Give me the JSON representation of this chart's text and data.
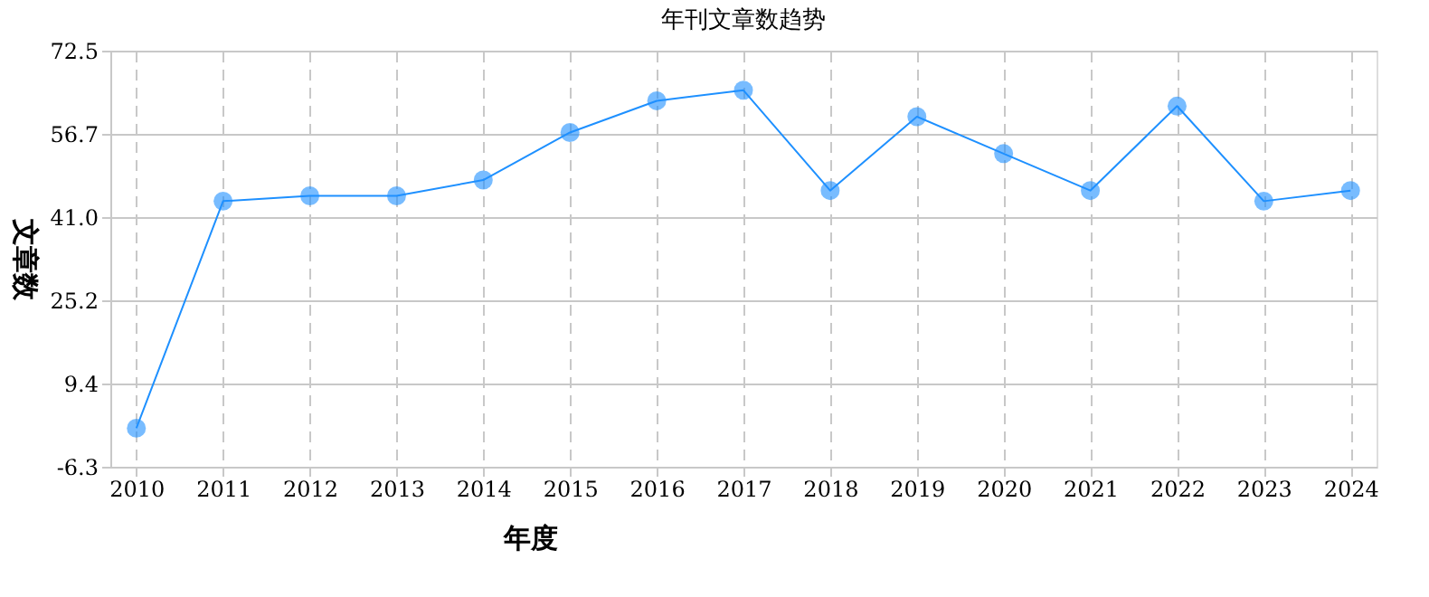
{
  "chart_data": {
    "type": "line",
    "title": "年刊文章数趋势",
    "xlabel": "年度",
    "ylabel": "文章数",
    "categories": [
      "2010",
      "2011",
      "2012",
      "2013",
      "2014",
      "2015",
      "2016",
      "2017",
      "2018",
      "2019",
      "2020",
      "2021",
      "2022",
      "2023",
      "2024"
    ],
    "series": [
      {
        "color": "#1e90ff",
        "values": [
          1,
          44,
          45,
          45,
          48,
          57,
          63,
          65,
          46,
          60,
          53,
          46,
          62,
          44,
          46
        ]
      }
    ],
    "ylim": [
      -6.3,
      72.5
    ],
    "yticks": [
      {
        "value": -6.3,
        "label": "-6.3"
      },
      {
        "value": 9.4,
        "label": "9.4"
      },
      {
        "value": 25.2,
        "label": "25.2"
      },
      {
        "value": 41.0,
        "label": "41.0"
      },
      {
        "value": 56.7,
        "label": "56.7"
      },
      {
        "value": 72.5,
        "label": "72.5"
      }
    ],
    "grid": true,
    "marker": "circle",
    "line_style": "solid"
  }
}
